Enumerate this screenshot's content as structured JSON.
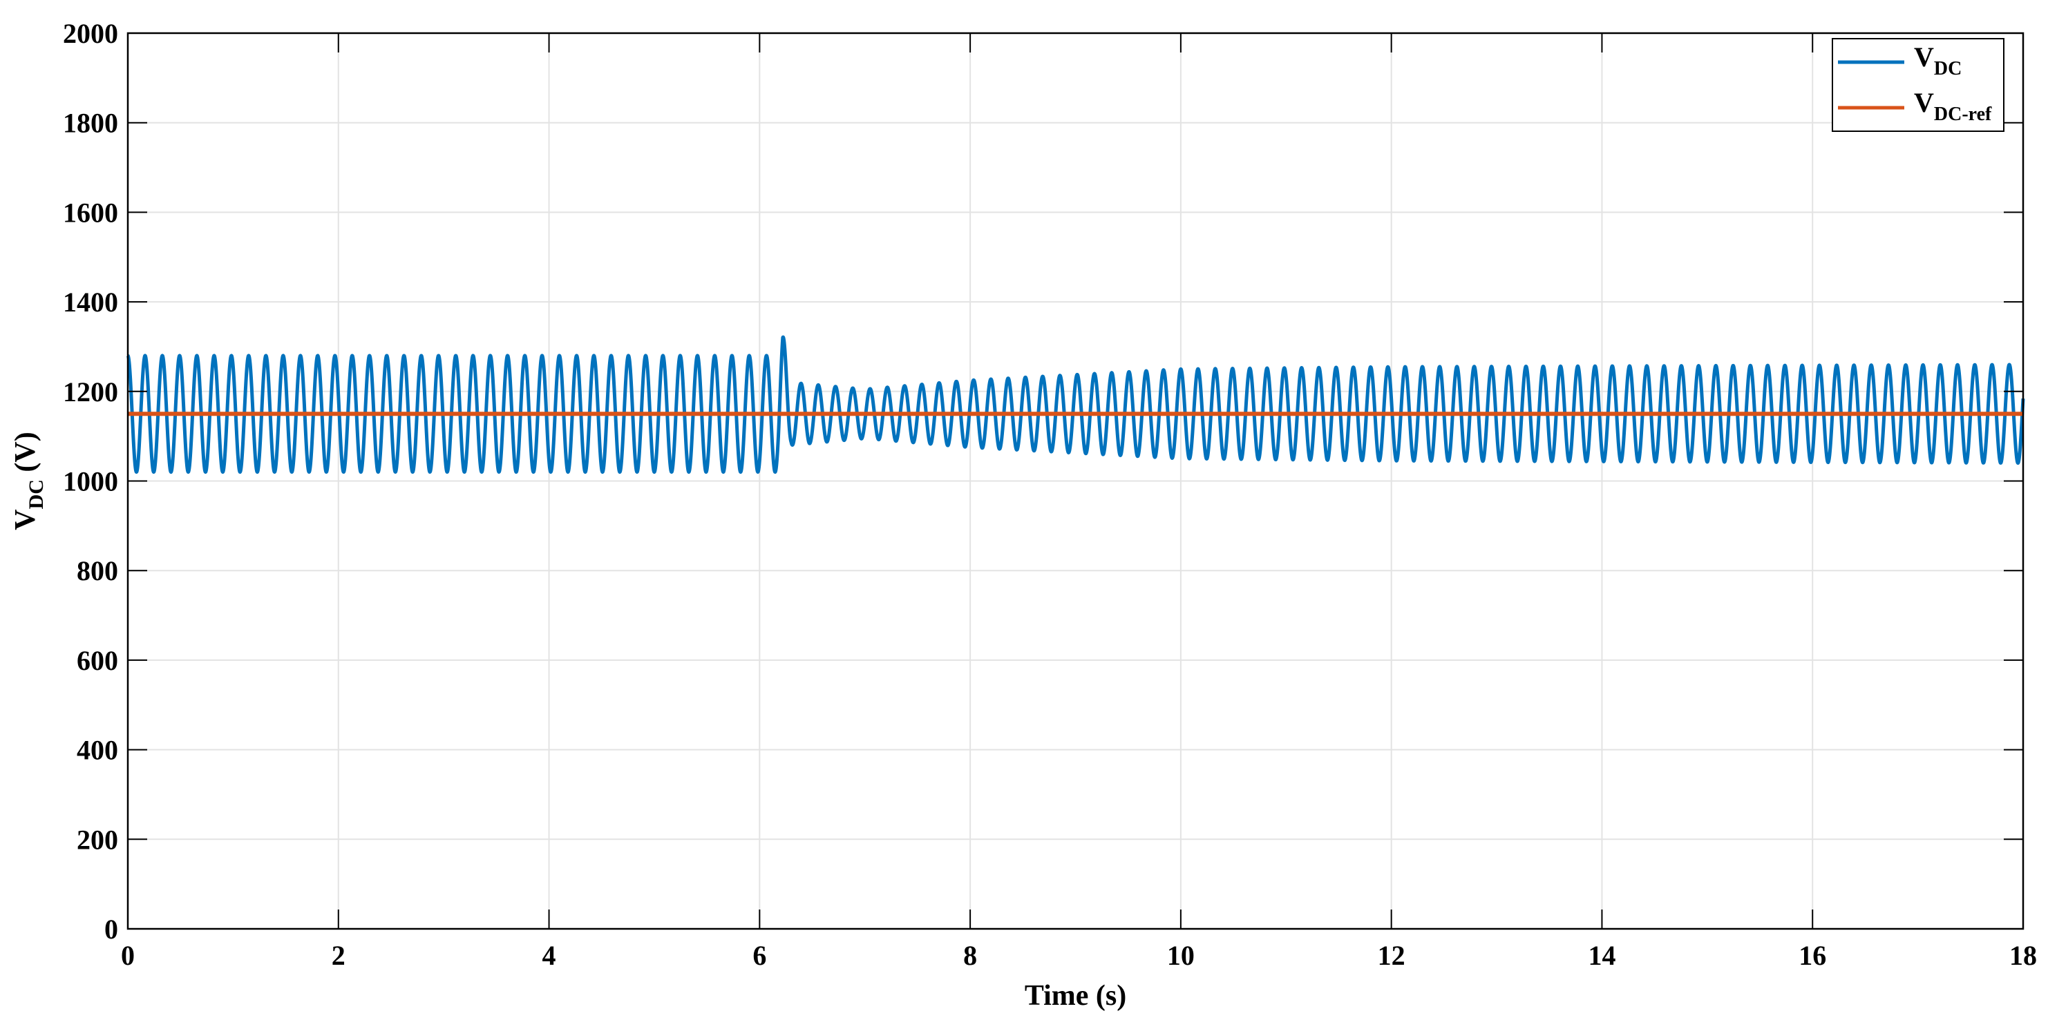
{
  "chart_data": {
    "type": "line",
    "xlabel": "Time (s)",
    "ylabel": {
      "main": "V",
      "sub": "DC",
      "suffix": " (V)"
    },
    "xlim": [
      0,
      18
    ],
    "ylim": [
      0,
      2000
    ],
    "xticks": [
      0,
      2,
      4,
      6,
      8,
      10,
      12,
      14,
      16,
      18
    ],
    "yticks": [
      0,
      200,
      400,
      600,
      800,
      1000,
      1200,
      1400,
      1600,
      1800,
      2000
    ],
    "grid": true,
    "legend_position": "top-right",
    "series": [
      {
        "name": "V",
        "name_sub": "DC",
        "color": "#0072BD",
        "oscillation_frequency_hz": 6.1,
        "envelope": [
          {
            "t": 0.0,
            "center": 1150,
            "amplitude": 130
          },
          {
            "t": 6.18,
            "center": 1150,
            "amplitude": 130
          },
          {
            "t": 6.22,
            "center": 1180,
            "amplitude": 150
          },
          {
            "t": 6.3,
            "center": 1150,
            "amplitude": 70
          },
          {
            "t": 7.0,
            "center": 1150,
            "amplitude": 55
          },
          {
            "t": 8.0,
            "center": 1150,
            "amplitude": 75
          },
          {
            "t": 10.0,
            "center": 1150,
            "amplitude": 100
          },
          {
            "t": 12.0,
            "center": 1150,
            "amplitude": 105
          },
          {
            "t": 18.0,
            "center": 1150,
            "amplitude": 110
          }
        ]
      },
      {
        "name": "V",
        "name_sub": "DC-ref",
        "color": "#D95319",
        "values": [
          [
            0,
            1150
          ],
          [
            18,
            1150
          ]
        ]
      }
    ]
  }
}
